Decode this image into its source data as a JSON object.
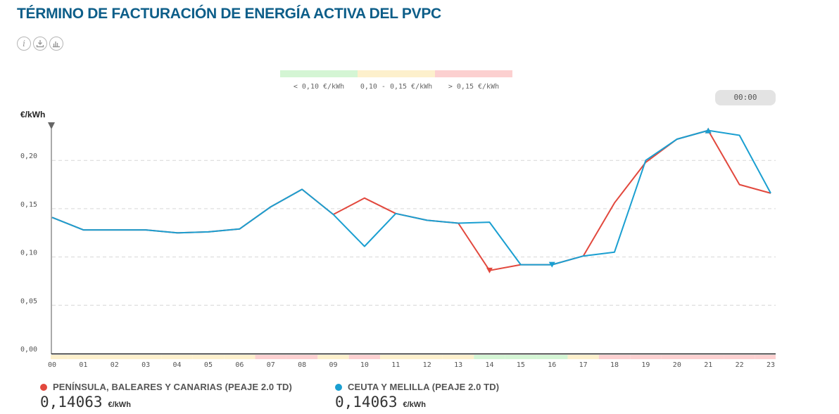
{
  "header": {
    "title": "TÉRMINO DE FACTURACIÓN DE ENERGÍA ACTIVA DEL PVPC",
    "tools": [
      {
        "icon": "info-icon",
        "glyph": "i"
      },
      {
        "icon": "download-icon"
      },
      {
        "icon": "chart-icon"
      }
    ]
  },
  "time_selector": {
    "value": "00:00"
  },
  "price_bands": [
    {
      "label": "< 0,10 €/kWh",
      "color": "#d4f5d4",
      "min": 0,
      "max": 0.1
    },
    {
      "label": "0,10 - 0,15 €/kWh",
      "color": "#fdf0cc",
      "min": 0.1,
      "max": 0.15
    },
    {
      "label": "> 0,15 €/kWh",
      "color": "#fcd0d0",
      "min": 0.15,
      "max": 1
    }
  ],
  "chart_data": {
    "type": "line",
    "title": "TÉRMINO DE FACTURACIÓN DE ENERGÍA ACTIVA DEL PVPC",
    "ylabel": "€/kWh",
    "xlabel": "",
    "ylim": [
      0,
      0.23
    ],
    "yticks": [
      0.0,
      0.05,
      0.1,
      0.15,
      0.2
    ],
    "ytick_labels": [
      "0,00",
      "0,05",
      "0,10",
      "0,15",
      "0,20"
    ],
    "categories": [
      "00",
      "01",
      "02",
      "03",
      "04",
      "05",
      "06",
      "07",
      "08",
      "09",
      "10",
      "11",
      "12",
      "13",
      "14",
      "15",
      "16",
      "17",
      "18",
      "19",
      "20",
      "21",
      "22",
      "23"
    ],
    "hour_bands": [
      "mid",
      "mid",
      "mid",
      "mid",
      "mid",
      "mid",
      "mid",
      "high",
      "high",
      "mid",
      "high",
      "mid",
      "mid",
      "mid",
      "low",
      "low",
      "low",
      "mid",
      "high",
      "high",
      "high",
      "high",
      "high",
      "high"
    ],
    "series": [
      {
        "name": "PENÍNSULA, BALEARES Y CANARIAS (PEAJE 2.0 TD)",
        "color": "#e2483d",
        "values": [
          0.141,
          0.128,
          0.128,
          0.128,
          0.125,
          0.126,
          0.129,
          0.152,
          0.17,
          0.144,
          0.161,
          0.145,
          0.138,
          0.135,
          0.086,
          0.092,
          0.092,
          0.101,
          0.156,
          0.198,
          0.222,
          0.231,
          0.175,
          0.166
        ],
        "min_index": 14,
        "max_index": 21,
        "current_value": "0,14063",
        "unit": "€/kWh"
      },
      {
        "name": "CEUTA Y MELILLA (PEAJE 2.0 TD)",
        "color": "#1a9fd1",
        "values": [
          0.141,
          0.128,
          0.128,
          0.128,
          0.125,
          0.126,
          0.129,
          0.152,
          0.17,
          0.144,
          0.111,
          0.145,
          0.138,
          0.135,
          0.136,
          0.092,
          0.092,
          0.101,
          0.105,
          0.2,
          0.222,
          0.231,
          0.226,
          0.166
        ],
        "min_index": 16,
        "max_index": 21,
        "current_value": "0,14063",
        "unit": "€/kWh"
      }
    ]
  }
}
